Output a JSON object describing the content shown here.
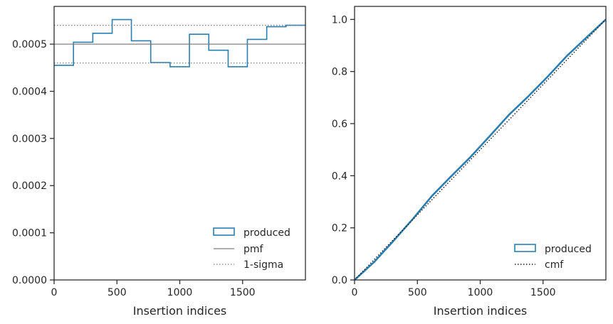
{
  "colors": {
    "produced": "#2a7fb0",
    "pmf": "#808080",
    "sigma": "#808080",
    "cmf": "#1a1a1a",
    "axes": "#262626"
  },
  "chart_data": [
    {
      "type": "histogram-step",
      "xlabel": "Insertion indices",
      "ylabel": "",
      "xlim": [
        0,
        2000
      ],
      "ylim": [
        0,
        0.00058
      ],
      "xticks": [
        0,
        500,
        1000,
        1500
      ],
      "xtick_labels": [
        "0",
        "500",
        "1000",
        "1500"
      ],
      "yticks": [
        0,
        0.0001,
        0.0002,
        0.0003,
        0.0004,
        0.0005
      ],
      "ytick_labels": [
        "0.0000",
        "0.0001",
        "0.0002",
        "0.0003",
        "0.0004",
        "0.0005"
      ],
      "bin_edges": [
        0,
        154,
        308,
        462,
        615,
        769,
        923,
        1077,
        1231,
        1385,
        1538,
        1692,
        1846,
        2000
      ],
      "series": [
        {
          "name": "produced",
          "style": "step",
          "values": [
            0.000455,
            0.000504,
            0.000523,
            0.000552,
            0.000507,
            0.000461,
            0.000452,
            0.000521,
            0.000487,
            0.000452,
            0.00051,
            0.000537,
            0.00054
          ]
        },
        {
          "name": "pmf",
          "style": "hline",
          "value": 0.0005
        },
        {
          "name": "1-sigma",
          "style": "hline-dotted",
          "values": [
            0.00046,
            0.00054
          ]
        }
      ],
      "legend": {
        "position": "lower-right",
        "entries": [
          "produced",
          "pmf",
          "1-sigma"
        ]
      },
      "grid": false
    },
    {
      "type": "line",
      "xlabel": "Insertion indices",
      "ylabel": "",
      "xlim": [
        0,
        2000
      ],
      "ylim": [
        0,
        1.05
      ],
      "xticks": [
        0,
        500,
        1000,
        1500
      ],
      "xtick_labels": [
        "0",
        "500",
        "1000",
        "1500"
      ],
      "yticks": [
        0,
        0.2,
        0.4,
        0.6,
        0.8,
        1.0
      ],
      "ytick_labels": [
        "0.0",
        "0.2",
        "0.4",
        "0.6",
        "0.8",
        "1.0"
      ],
      "series": [
        {
          "name": "produced",
          "style": "step-thick",
          "x": [
            0,
            154,
            308,
            462,
            615,
            769,
            923,
            1077,
            1231,
            1385,
            1538,
            1692,
            1846,
            2000
          ],
          "y": [
            0,
            0.068,
            0.149,
            0.233,
            0.322,
            0.398,
            0.472,
            0.553,
            0.635,
            0.706,
            0.781,
            0.861,
            0.931,
            1.0
          ]
        },
        {
          "name": "cmf",
          "style": "dotted",
          "x": [
            0,
            2000
          ],
          "y": [
            0,
            1.0
          ]
        }
      ],
      "legend": {
        "position": "lower-right",
        "entries": [
          "produced",
          "cmf"
        ]
      },
      "grid": false
    }
  ]
}
